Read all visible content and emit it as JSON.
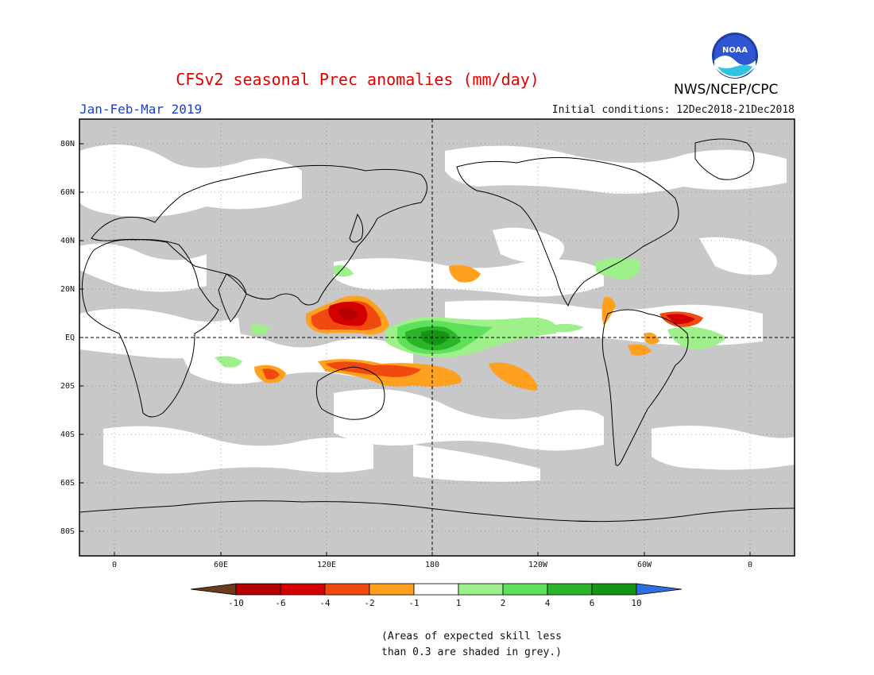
{
  "header": {
    "title": "CFSv2 seasonal Prec anomalies (mm/day)",
    "period": "Jan-Feb-Mar 2019",
    "initial_conditions": "Initial conditions: 12Dec2018-21Dec2018",
    "agency": "NWS/NCEP/CPC",
    "logo_text": "NOAA"
  },
  "map": {
    "lat_ticks": [
      "80N",
      "60N",
      "40N",
      "20N",
      "EQ",
      "20S",
      "40S",
      "60S",
      "80S"
    ],
    "lon_ticks": [
      "0",
      "60E",
      "120E",
      "180",
      "120W",
      "60W",
      "0"
    ],
    "grey_note": "areas of expected skill less than 0.3",
    "colors": {
      "grey": "#c8c8c8",
      "white": "#ffffff"
    }
  },
  "colorbar": {
    "labels": [
      "-10",
      "-6",
      "-4",
      "-2",
      "-1",
      "1",
      "2",
      "4",
      "6",
      "10"
    ],
    "colors": [
      "#6b3a1f",
      "#b50000",
      "#d40000",
      "#f04a10",
      "#ffa01e",
      "#ffffff",
      "#9ef08a",
      "#5ee05a",
      "#2bb52b",
      "#149614",
      "#2f6fe0"
    ]
  },
  "footnote": {
    "line1": "(Areas of expected skill less",
    "line2": "than 0.3 are shaded in grey.)"
  }
}
